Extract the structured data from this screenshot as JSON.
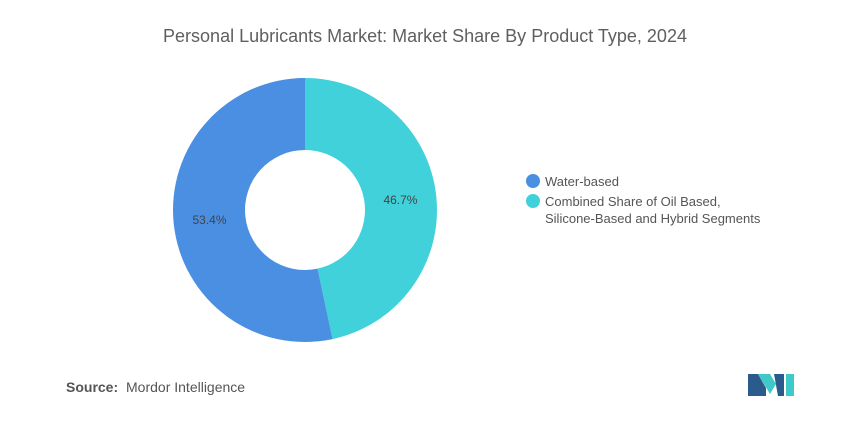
{
  "chart_data": {
    "type": "pie",
    "donut": true,
    "title": "Personal Lubricants Market: Market Share By Product Type, 2024",
    "categories": [
      "Water-based",
      "Combined Share of Oil Based, Silicone-Based and Hybrid Segments"
    ],
    "values": [
      53.4,
      46.7
    ],
    "labels": [
      "53.4%",
      "46.7%"
    ],
    "colors": [
      "#4a8fe2",
      "#40d1da"
    ],
    "legend_position": "right"
  },
  "legend": {
    "items": [
      {
        "line1": "Water-based",
        "line2": ""
      },
      {
        "line1": "Combined Share of Oil Based,",
        "line2": "Silicone-Based and Hybrid Segments"
      }
    ]
  },
  "source": {
    "key": "Source:",
    "value": "Mordor Intelligence"
  },
  "logo": {
    "icon": "mordor-intelligence-logo-icon",
    "colors": [
      "#2a5b8c",
      "#3fc9c9"
    ]
  }
}
